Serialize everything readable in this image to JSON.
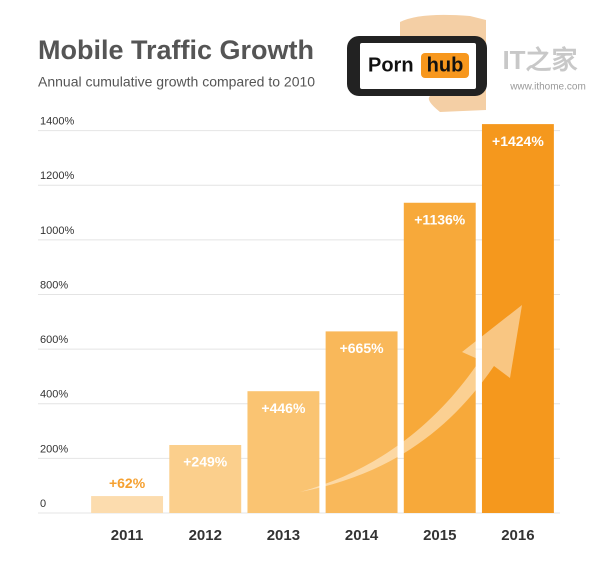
{
  "chart_data": {
    "type": "bar",
    "title": "Mobile Traffic Growth",
    "subtitle": "Annual cumulative growth compared to 2010",
    "logo": {
      "left": "Porn",
      "right": "hub"
    },
    "watermark": {
      "brand": "IT之家",
      "url": "www.ithome.com"
    },
    "categories": [
      "2011",
      "2012",
      "2013",
      "2014",
      "2015",
      "2016"
    ],
    "values": [
      62,
      249,
      446,
      665,
      1136,
      1424
    ],
    "value_labels": [
      "+62%",
      "+249%",
      "+446%",
      "+665%",
      "+1136%",
      "+1424%"
    ],
    "colors": [
      "#fcdcae",
      "#fbcf8c",
      "#fac472",
      "#f9b85a",
      "#f7a93a",
      "#f5981d"
    ],
    "ylim": [
      0,
      1450
    ],
    "yticks": [
      0,
      {
        "value": 200,
        "label": "200%"
      },
      {
        "value": 400,
        "label": "400%"
      },
      {
        "value": 600,
        "label": "600%"
      },
      {
        "value": 800,
        "label": "800%"
      },
      {
        "value": 1000,
        "label": "1000%"
      },
      {
        "value": 1200,
        "label": "1200%"
      },
      {
        "value": 1400,
        "label": "1400%"
      }
    ],
    "grid": true
  }
}
